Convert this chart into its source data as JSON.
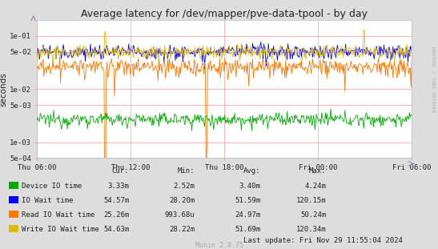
{
  "title": "Average latency for /dev/mapper/pve-data-tpool - by day",
  "ylabel": "seconds",
  "plot_bg_color": "#FFFFFF",
  "grid_color": "#FFAAAA",
  "x_ticks": [
    "Thu 06:00",
    "Thu 12:00",
    "Thu 18:00",
    "Fri 00:00",
    "Fri 06:00"
  ],
  "yticks": [
    0.0005,
    0.001,
    0.005,
    0.01,
    0.05,
    0.1
  ],
  "ytick_labels": [
    "5e-04",
    "1e-03",
    "5e-03",
    "1e-02",
    "5e-02",
    "1e-01"
  ],
  "series": {
    "device_io": {
      "color": "#00AA00"
    },
    "io_wait": {
      "color": "#0000FF"
    },
    "read_io_wait": {
      "color": "#FF7700"
    },
    "write_io_wait": {
      "color": "#DDBB00"
    }
  },
  "legend_items": [
    {
      "label": "Device IO time",
      "color": "#00AA00"
    },
    {
      "label": "IO Wait time",
      "color": "#0000FF"
    },
    {
      "label": "Read IO Wait time",
      "color": "#FF7700"
    },
    {
      "label": "Write IO Wait time",
      "color": "#DDBB00"
    }
  ],
  "stats": {
    "headers": [
      "Cur:",
      "Min:",
      "Avg:",
      "Max:"
    ],
    "rows": [
      [
        "Device IO time",
        "3.33m",
        "2.52m",
        "3.40m",
        "4.24m"
      ],
      [
        "IO Wait time",
        "54.57m",
        "28.20m",
        "51.59m",
        "120.15m"
      ],
      [
        "Read IO Wait time",
        "25.26m",
        "993.68u",
        "24.97m",
        "50.24m"
      ],
      [
        "Write IO Wait time",
        "54.63m",
        "28.22m",
        "51.69m",
        "120.34m"
      ]
    ]
  },
  "last_update": "Last update: Fri Nov 29 11:55:04 2024",
  "watermark": "Munin 2.0.75",
  "rrdtool_text": "RRDTOOL / TOBI OETIKER",
  "outer_bg": "#DDDDDD",
  "n_points": 500
}
